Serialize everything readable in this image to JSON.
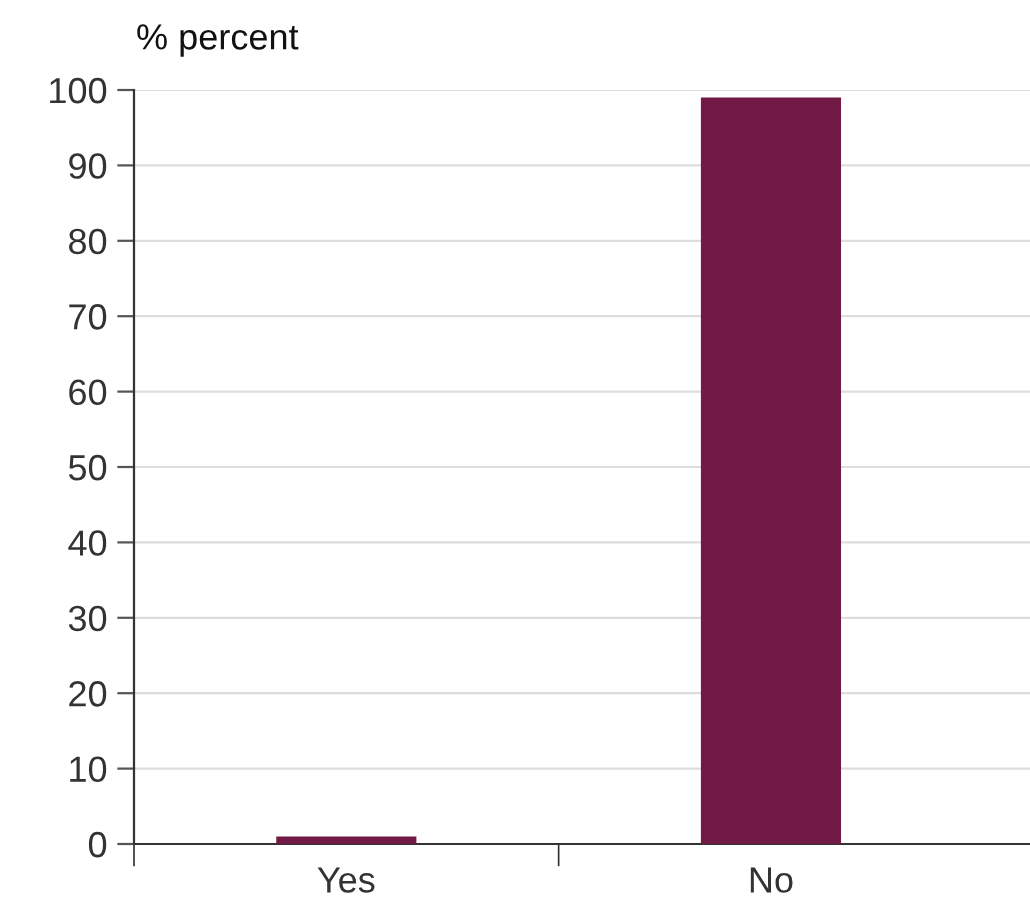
{
  "chart_data": {
    "type": "bar",
    "ylabel": "% percent",
    "categories": [
      "Yes",
      "No"
    ],
    "values": [
      1,
      99
    ],
    "color": "#701a45",
    "ylim": [
      0,
      100
    ],
    "yticks": [
      0,
      10,
      20,
      30,
      40,
      50,
      60,
      70,
      80,
      90,
      100
    ],
    "grid": "y"
  }
}
